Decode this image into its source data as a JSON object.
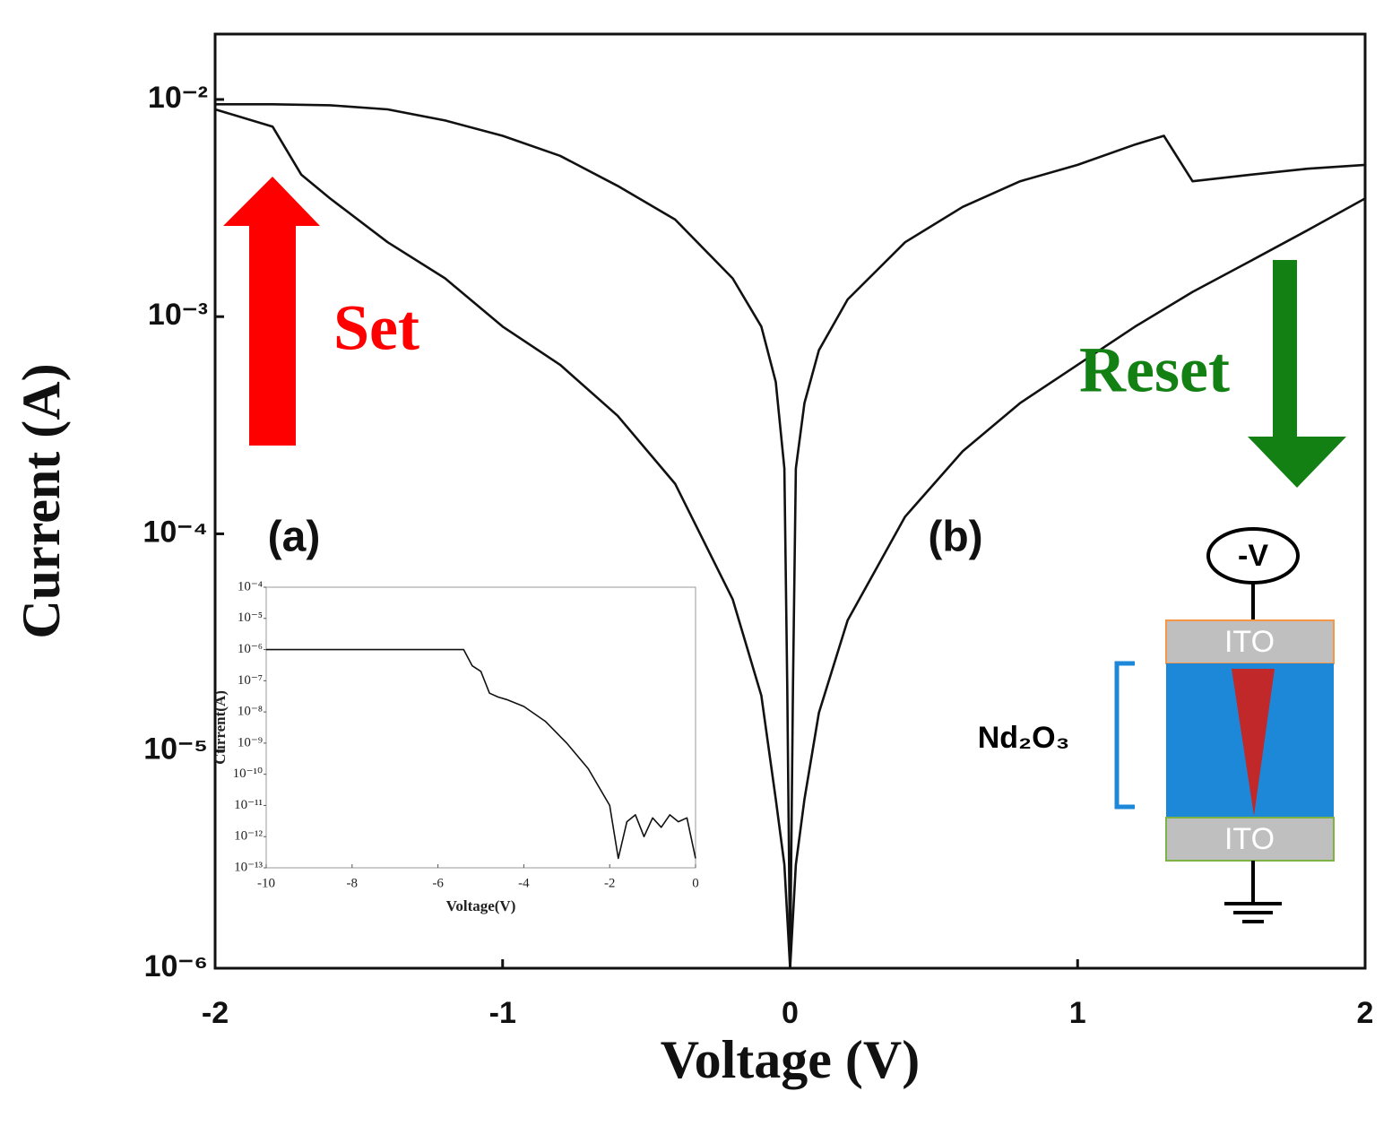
{
  "chart_data": [
    {
      "type": "line",
      "log_y": true,
      "grid": false,
      "x_label": "Voltage (V)",
      "y_label": "Current (A)",
      "xlim": [
        -2,
        2
      ],
      "xticks": [
        -2,
        -1,
        0,
        1,
        2
      ],
      "ylim": [
        1e-06,
        0.02
      ],
      "yticks": [
        {
          "value": 0.01,
          "label": "10⁻²"
        },
        {
          "value": 0.001,
          "label": "10⁻³"
        },
        {
          "value": 0.0001,
          "label": "10⁻⁴"
        },
        {
          "value": 1e-05,
          "label": "10⁻⁵"
        },
        {
          "value": 1e-06,
          "label": "10⁻⁶"
        }
      ],
      "annotations": [
        "Set",
        "Reset",
        "(a)",
        "(b)"
      ],
      "series": [
        {
          "color": "#111111",
          "x": [
            -2,
            -1.8,
            -1.6,
            -1.4,
            -1.2,
            -1,
            -0.8,
            -0.6,
            -0.4,
            -0.2,
            -0.1,
            -0.05,
            -0.02,
            -0.01,
            0
          ],
          "values": [
            0.0095,
            0.0095,
            0.0094,
            0.009,
            0.008,
            0.0068,
            0.0055,
            0.004,
            0.0028,
            0.0015,
            0.0009,
            0.0005,
            0.0002,
            2e-05,
            1e-06
          ]
        },
        {
          "color": "#111111",
          "x": [
            -2,
            -1.8,
            -1.7,
            -1.6,
            -1.4,
            -1.2,
            -1,
            -0.8,
            -0.6,
            -0.4,
            -0.2,
            -0.1,
            -0.05,
            -0.02,
            0
          ],
          "values": [
            0.009,
            0.0075,
            0.0045,
            0.0035,
            0.0022,
            0.0015,
            0.0009,
            0.0006,
            0.00035,
            0.00017,
            5e-05,
            1.8e-05,
            6e-06,
            3e-06,
            1e-06
          ]
        },
        {
          "color": "#111111",
          "x": [
            0,
            0.01,
            0.02,
            0.05,
            0.1,
            0.2,
            0.4,
            0.6,
            0.8,
            1,
            1.2,
            1.3,
            1.4,
            1.6,
            1.8,
            2
          ],
          "values": [
            1e-06,
            2e-05,
            0.0002,
            0.0004,
            0.0007,
            0.0012,
            0.0022,
            0.0032,
            0.0042,
            0.005,
            0.0062,
            0.0068,
            0.0042,
            0.0045,
            0.0048,
            0.005
          ]
        },
        {
          "color": "#111111",
          "x": [
            0,
            0.02,
            0.05,
            0.1,
            0.2,
            0.4,
            0.6,
            0.8,
            1,
            1.2,
            1.4,
            1.6,
            1.8,
            2
          ],
          "values": [
            1e-06,
            3e-06,
            6e-06,
            1.5e-05,
            4e-05,
            0.00012,
            0.00024,
            0.0004,
            0.0006,
            0.0009,
            0.0013,
            0.0018,
            0.0025,
            0.0035
          ]
        }
      ]
    },
    {
      "type": "line",
      "log_y": true,
      "grid": false,
      "x_label": "Voltage(V)",
      "y_label": "Current(A)",
      "xlim": [
        -10,
        0
      ],
      "xticks": [
        -10,
        -8,
        -6,
        -4,
        -2,
        0
      ],
      "ylim": [
        1e-13,
        0.0001
      ],
      "yticks": [
        {
          "value": 0.0001,
          "label": "10⁻⁴"
        },
        {
          "value": 1e-05,
          "label": "10⁻⁵"
        },
        {
          "value": 1e-06,
          "label": "10⁻⁶"
        },
        {
          "value": 1e-07,
          "label": "10⁻⁷"
        },
        {
          "value": 1e-08,
          "label": "10⁻⁸"
        },
        {
          "value": 1e-09,
          "label": "10⁻⁹"
        },
        {
          "value": 1e-10,
          "label": "10⁻¹⁰"
        },
        {
          "value": 1e-11,
          "label": "10⁻¹¹"
        },
        {
          "value": 1e-12,
          "label": "10⁻¹²"
        },
        {
          "value": 1e-13,
          "label": "10⁻¹³"
        }
      ],
      "series": [
        {
          "color": "#111111",
          "x": [
            -10,
            -9,
            -8,
            -7,
            -6,
            -5.4,
            -5.2,
            -5,
            -4.8,
            -4.6,
            -4.4,
            -4,
            -3.5,
            -3,
            -2.5,
            -2,
            -1.8,
            -1.6,
            -1.4,
            -1.2,
            -1,
            -0.8,
            -0.6,
            -0.4,
            -0.2,
            0
          ],
          "values": [
            1e-06,
            1e-06,
            1e-06,
            1e-06,
            1e-06,
            1e-06,
            3e-07,
            2e-07,
            4e-08,
            3e-08,
            2.5e-08,
            1.5e-08,
            5e-09,
            1e-09,
            1.5e-10,
            1e-11,
            2e-13,
            3e-12,
            5e-12,
            1e-12,
            4e-12,
            2e-12,
            5e-12,
            3e-12,
            4e-12,
            2e-13
          ]
        }
      ]
    }
  ],
  "diagram": {
    "source": "-V",
    "top_electrode": "ITO",
    "layer": "Nd₂O₃",
    "bottom_electrode": "ITO"
  }
}
